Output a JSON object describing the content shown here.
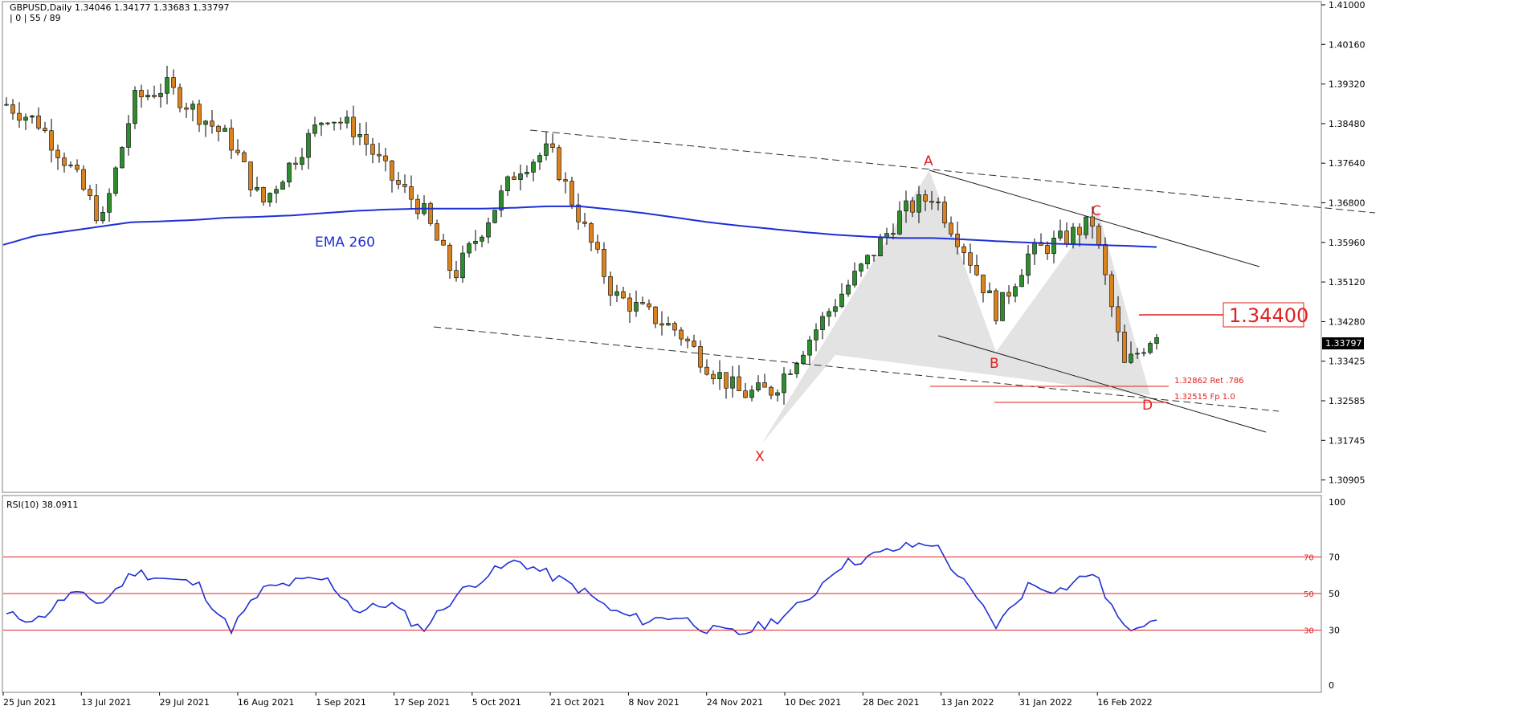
{
  "window": {
    "symbol_line": "GBPUSD,Daily  1.34046 1.34177 1.33683 1.33797",
    "indicator_line": "| 0 | 55 / 89"
  },
  "main_panel": {
    "price_ticks": [
      "1.41000",
      "1.40160",
      "1.39320",
      "1.38480",
      "1.37640",
      "1.36800",
      "1.35960",
      "1.35120",
      "1.34280",
      "1.33425",
      "1.32585",
      "1.31745",
      "1.30905"
    ],
    "current_price": "1.33797",
    "ema_label": "EMA 260",
    "target_label": "1.34400",
    "levels": {
      "ret": "1.32862 Ret .786",
      "fp": "1.32515 Fp 1.0"
    },
    "pattern_points": {
      "x": "X",
      "a": "A",
      "b": "B",
      "c": "C",
      "d": "D"
    }
  },
  "rsi_panel": {
    "title": "RSI(10) 38.0911",
    "ticks": [
      "100",
      "70",
      "50",
      "30",
      "0"
    ]
  },
  "time_axis": [
    "25 Jun 2021",
    "13 Jul 2021",
    "29 Jul 2021",
    "16 Aug 2021",
    "1 Sep 2021",
    "17 Sep 2021",
    "5 Oct 2021",
    "21 Oct 2021",
    "8 Nov 2021",
    "24 Nov 2021",
    "10 Dec 2021",
    "28 Dec 2021",
    "13 Jan 2022",
    "31 Jan 2022",
    "16 Feb 2022"
  ],
  "colors": {
    "bull": "#2e8b2e",
    "bear": "#d9821e",
    "ema": "#1f2fd6",
    "rsi": "#1f2fd6",
    "red": "#e0201f",
    "pattern_fill": "#d9d9d9"
  },
  "chart_data": [
    {
      "type": "candlestick",
      "title": "GBPUSD,Daily",
      "ylim": [
        1.305,
        1.41
      ],
      "x": [
        "2021-06-25",
        "2021-07-02",
        "2021-07-09",
        "2021-07-16",
        "2021-07-23",
        "2021-07-30",
        "2021-08-06",
        "2021-08-13",
        "2021-08-20",
        "2021-08-27",
        "2021-09-03",
        "2021-09-10",
        "2021-09-17",
        "2021-09-24",
        "2021-10-01",
        "2021-10-08",
        "2021-10-15",
        "2021-10-22",
        "2021-10-29",
        "2021-11-05",
        "2021-11-12",
        "2021-11-19",
        "2021-11-26",
        "2021-12-03",
        "2021-12-10",
        "2021-12-17",
        "2021-12-24",
        "2021-12-31",
        "2022-01-07",
        "2022-01-14",
        "2022-01-21",
        "2022-01-28",
        "2022-02-04",
        "2022-02-11",
        "2022-02-18",
        "2022-02-25",
        "2022-03-02"
      ],
      "close": [
        1.388,
        1.384,
        1.374,
        1.362,
        1.389,
        1.392,
        1.386,
        1.38,
        1.366,
        1.376,
        1.386,
        1.382,
        1.372,
        1.365,
        1.35,
        1.362,
        1.374,
        1.378,
        1.362,
        1.346,
        1.342,
        1.338,
        1.33,
        1.324,
        1.325,
        1.335,
        1.345,
        1.354,
        1.364,
        1.368,
        1.356,
        1.342,
        1.355,
        1.358,
        1.362,
        1.33,
        1.338
      ],
      "series": [
        {
          "name": "EMA 260",
          "values": [
            1.357,
            1.359,
            1.36,
            1.361,
            1.362,
            1.3622,
            1.3625,
            1.363,
            1.3632,
            1.3635,
            1.364,
            1.3645,
            1.3648,
            1.365,
            1.365,
            1.365,
            1.3652,
            1.3655,
            1.3655,
            1.3648,
            1.364,
            1.363,
            1.362,
            1.3612,
            1.3605,
            1.3598,
            1.3592,
            1.3588,
            1.3585,
            1.3585,
            1.3582,
            1.3578,
            1.3575,
            1.3572,
            1.357,
            1.3568,
            1.3565
          ]
        }
      ]
    },
    {
      "type": "line",
      "title": "RSI(10) 38.0911",
      "ylim": [
        0,
        100
      ],
      "levels": [
        30,
        50,
        70
      ],
      "series": [
        {
          "name": "RSI(10)",
          "values": [
            38,
            36,
            50,
            45,
            62,
            58,
            55,
            30,
            52,
            56,
            58,
            40,
            45,
            30,
            48,
            60,
            68,
            60,
            52,
            40,
            35,
            38,
            30,
            28,
            35,
            45,
            65,
            70,
            75,
            78,
            55,
            32,
            55,
            52,
            62,
            30,
            38
          ]
        }
      ]
    }
  ]
}
